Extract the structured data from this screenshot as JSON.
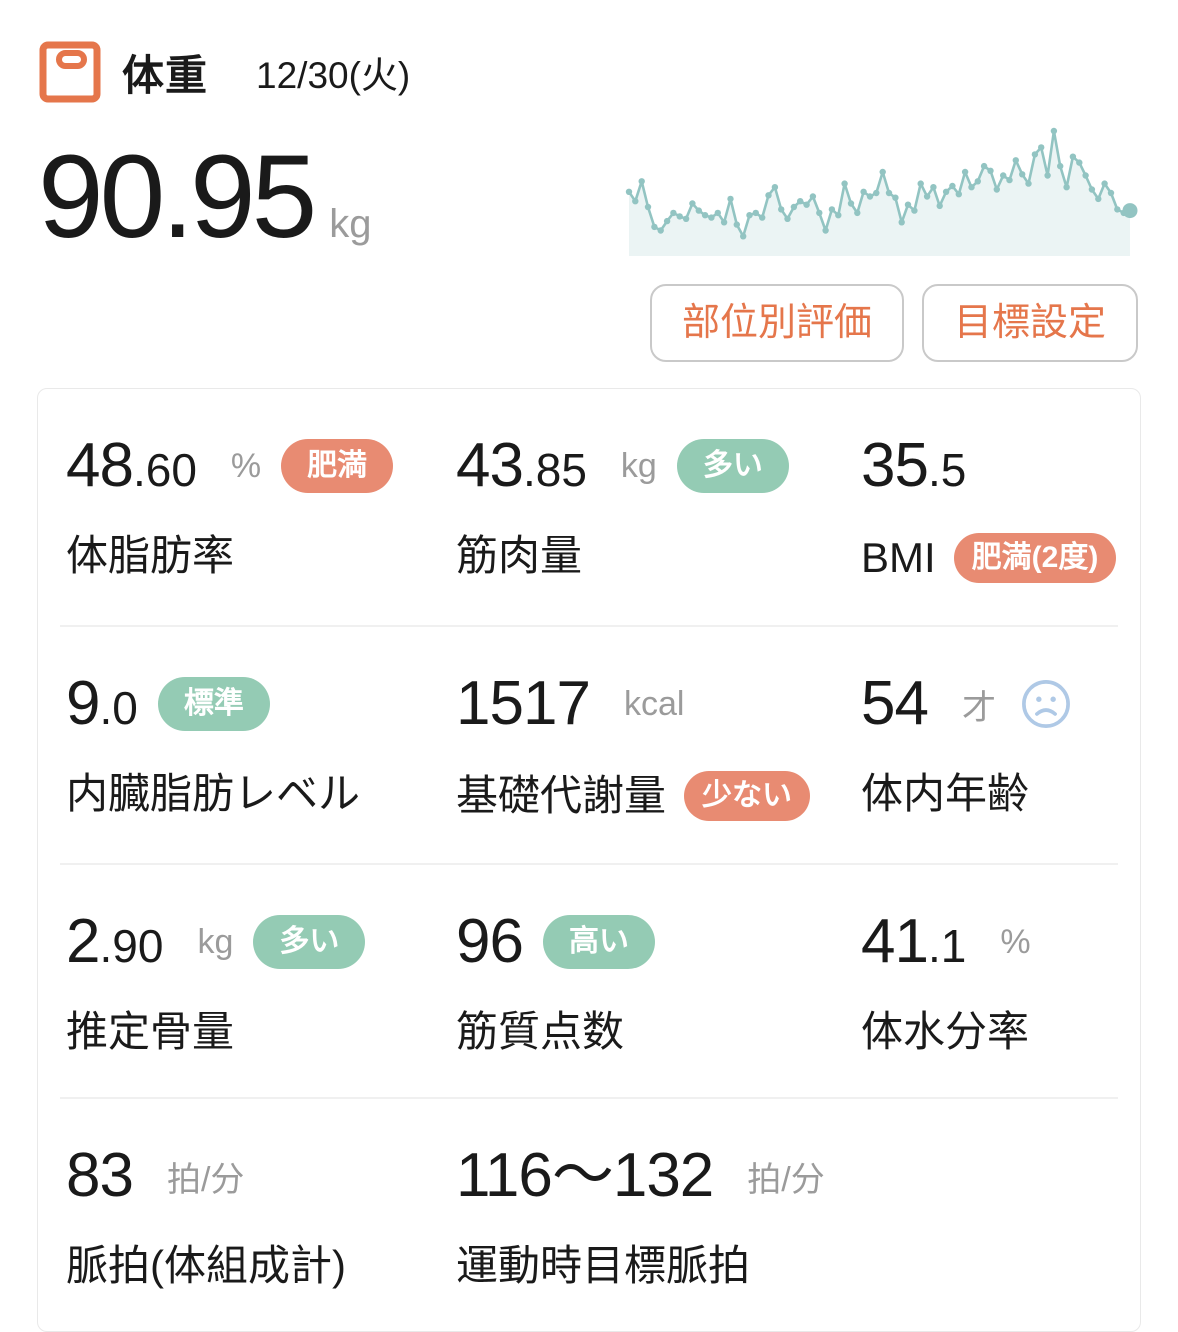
{
  "header": {
    "title": "体重",
    "date": "12/30(火)"
  },
  "weight": {
    "value": "90.95",
    "unit": "kg"
  },
  "actions": {
    "body_part_button": "部位別評価",
    "goal_button": "目標設定"
  },
  "chart_data": {
    "type": "area",
    "title": "",
    "xlabel": "",
    "ylabel": "",
    "grid": false,
    "legend": false,
    "series": [
      {
        "name": "weight-trend-sparkline",
        "values_relative": [
          48,
          40,
          57,
          35,
          18,
          15,
          23,
          30,
          27,
          25,
          38,
          32,
          28,
          26,
          30,
          22,
          42,
          20,
          10,
          28,
          30,
          26,
          45,
          52,
          33,
          25,
          35,
          40,
          37,
          44,
          30,
          15,
          33,
          28,
          55,
          38,
          30,
          48,
          44,
          47,
          65,
          47,
          43,
          22,
          37,
          32,
          55,
          44,
          52,
          36,
          48,
          53,
          46,
          65,
          52,
          57,
          70,
          66,
          50,
          62,
          58,
          75,
          63,
          55,
          80,
          86,
          62,
          100,
          70,
          52,
          78,
          73,
          62,
          50,
          42,
          55,
          47,
          33,
          30,
          32
        ]
      }
    ],
    "ylim_relative": [
      0,
      100
    ],
    "last_point_emphasized": true,
    "line_color": "#92C4C2",
    "fill_color": "rgba(146,196,194,0.18)"
  },
  "metrics": [
    {
      "name": "body-fat-percentage",
      "value_int": "48",
      "value_dec": ".60",
      "unit": "%",
      "badge": {
        "label": "肥満",
        "type": "negative",
        "position": "value"
      },
      "label": "体脂肪率"
    },
    {
      "name": "muscle-mass",
      "value_int": "43",
      "value_dec": ".85",
      "unit": "kg",
      "badge": {
        "label": "多い",
        "type": "positive",
        "position": "value"
      },
      "label": "筋肉量"
    },
    {
      "name": "bmi",
      "value_int": "35",
      "value_dec": ".5",
      "badge": {
        "label": "肥満(2度)",
        "type": "negative",
        "position": "label"
      },
      "label": "BMI"
    },
    {
      "name": "visceral-fat-level",
      "value_int": "9",
      "value_dec": ".0",
      "badge": {
        "label": "標準",
        "type": "positive",
        "position": "value"
      },
      "label": "内臓脂肪レベル"
    },
    {
      "name": "basal-metabolic-rate",
      "value_int": "1517",
      "unit": "kcal",
      "badge": {
        "label": "少ない",
        "type": "negative",
        "position": "label"
      },
      "label": "基礎代謝量"
    },
    {
      "name": "body-age",
      "value_int": "54",
      "unit": "才",
      "icon": "sad-face-icon",
      "label": "体内年齢"
    },
    {
      "name": "estimated-bone-mass",
      "value_int": "2",
      "value_dec": ".90",
      "unit": "kg",
      "badge": {
        "label": "多い",
        "type": "positive",
        "position": "value"
      },
      "label": "推定骨量"
    },
    {
      "name": "muscle-quality-score",
      "value_int": "96",
      "badge": {
        "label": "高い",
        "type": "positive",
        "position": "value"
      },
      "label": "筋質点数"
    },
    {
      "name": "body-water-percentage",
      "value_int": "41",
      "value_dec": ".1",
      "unit": "%",
      "label": "体水分率"
    },
    {
      "name": "pulse-body-composition",
      "value_int": "83",
      "unit": "拍/分",
      "label": "脈拍(体組成計)"
    },
    {
      "name": "target-exercise-pulse",
      "value_int": "116〜132",
      "unit": "拍/分",
      "label": "運動時目標脈拍"
    }
  ],
  "colors": {
    "accent_orange": "#E5764B",
    "badge_negative": "#E88B72",
    "badge_positive": "#94CBB4",
    "chart_teal": "#92C4C2",
    "unit_gray": "#9B9B9B",
    "button_border": "#C9C9C9",
    "card_border": "#E9E9E9",
    "divider_gray": "#F0F0F0",
    "sad_face_blue": "#AFC9E6",
    "text_black": "#1A1A1A"
  }
}
